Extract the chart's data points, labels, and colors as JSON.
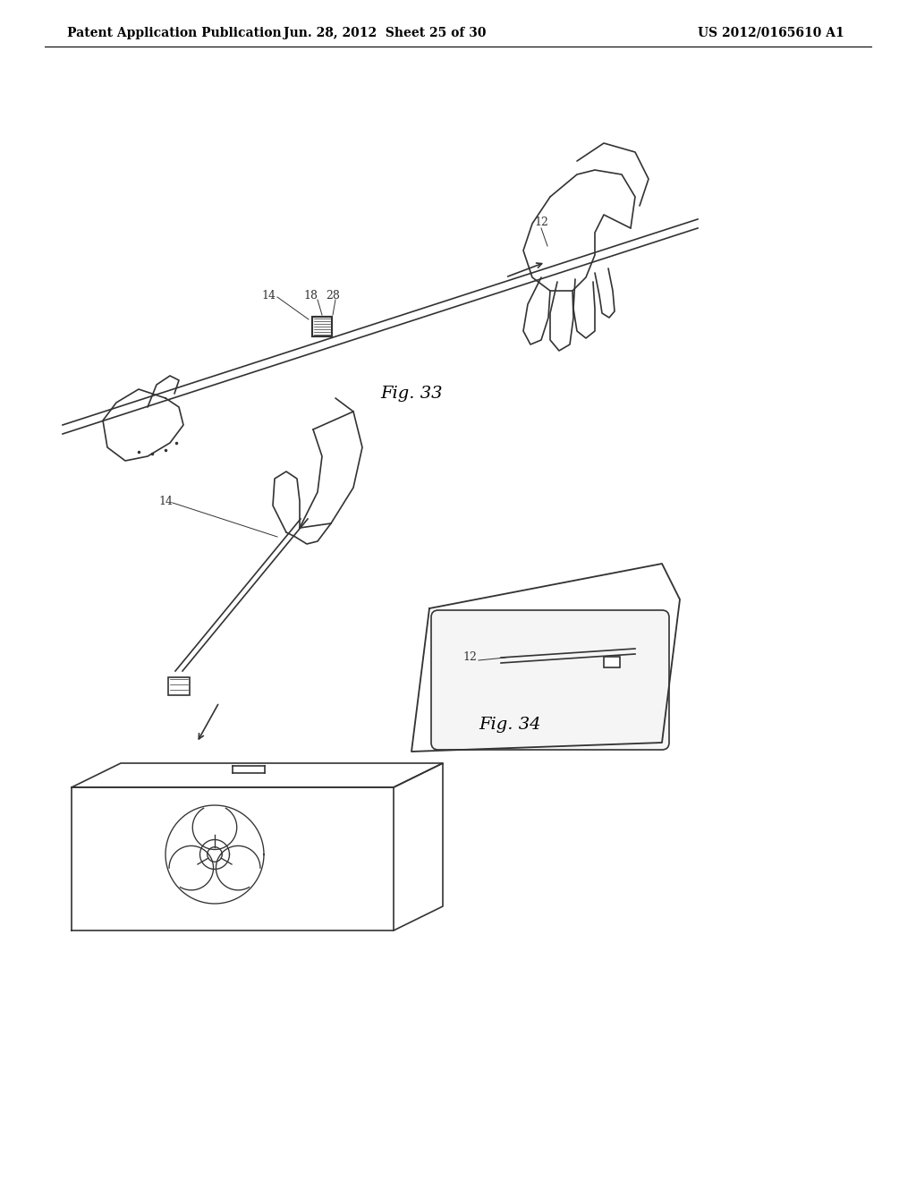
{
  "background_color": "#ffffff",
  "header_left": "Patent Application Publication",
  "header_center": "Jun. 28, 2012  Sheet 25 of 30",
  "header_right": "US 2012/0165610 A1",
  "header_fontsize": 10,
  "fig33_label": "Fig. 33",
  "fig34_label": "Fig. 34",
  "label_fontsize": 14,
  "annotation_fontsize": 9,
  "line_color": "#333333",
  "line_width": 1.2,
  "fig_width": 10.24,
  "fig_height": 13.2
}
